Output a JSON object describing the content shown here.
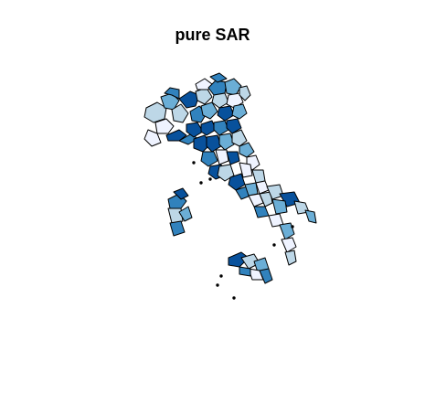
{
  "figure": {
    "title": "pure SAR"
  },
  "palette": {
    "c1": "#eff3ff",
    "c2": "#bdd7e7",
    "c3": "#6baed6",
    "c4": "#3182bd",
    "c5": "#08519c",
    "border": "#000000",
    "background": "#ffffff"
  }
}
